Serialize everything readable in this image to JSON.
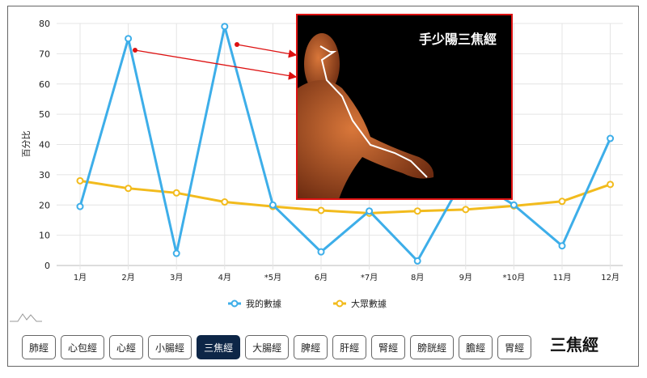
{
  "chart_data": {
    "type": "line",
    "ylabel": "百分比",
    "ylim": [
      0,
      80
    ],
    "yticks": [
      0,
      10,
      20,
      30,
      40,
      50,
      60,
      70,
      80
    ],
    "categories": [
      "1月",
      "2月",
      "3月",
      "4月",
      "*5月",
      "6月",
      "*7月",
      "8月",
      "9月",
      "*10月",
      "11月",
      "12月"
    ],
    "grid": true,
    "legend_position": "bottom",
    "series": [
      {
        "name": "我的數據",
        "color": "#3daee9",
        "values": [
          19.5,
          75,
          4,
          79,
          20,
          4.5,
          18,
          1.5,
          30,
          20,
          6.5,
          42
        ]
      },
      {
        "name": "大眾數據",
        "color": "#f2bb1d",
        "values": [
          28,
          25.5,
          24,
          21,
          19.5,
          18.2,
          17.3,
          18,
          18.5,
          19.7,
          21.2,
          26.8
        ]
      }
    ]
  },
  "figure": {
    "title": "手少陽三焦經"
  },
  "buttons": [
    "肺經",
    "心包經",
    "心經",
    "小腸經",
    "三焦經",
    "大腸經",
    "脾經",
    "肝經",
    "腎經",
    "膀胱經",
    "膽經",
    "胃經"
  ],
  "active": "三焦經",
  "current": "三焦經"
}
